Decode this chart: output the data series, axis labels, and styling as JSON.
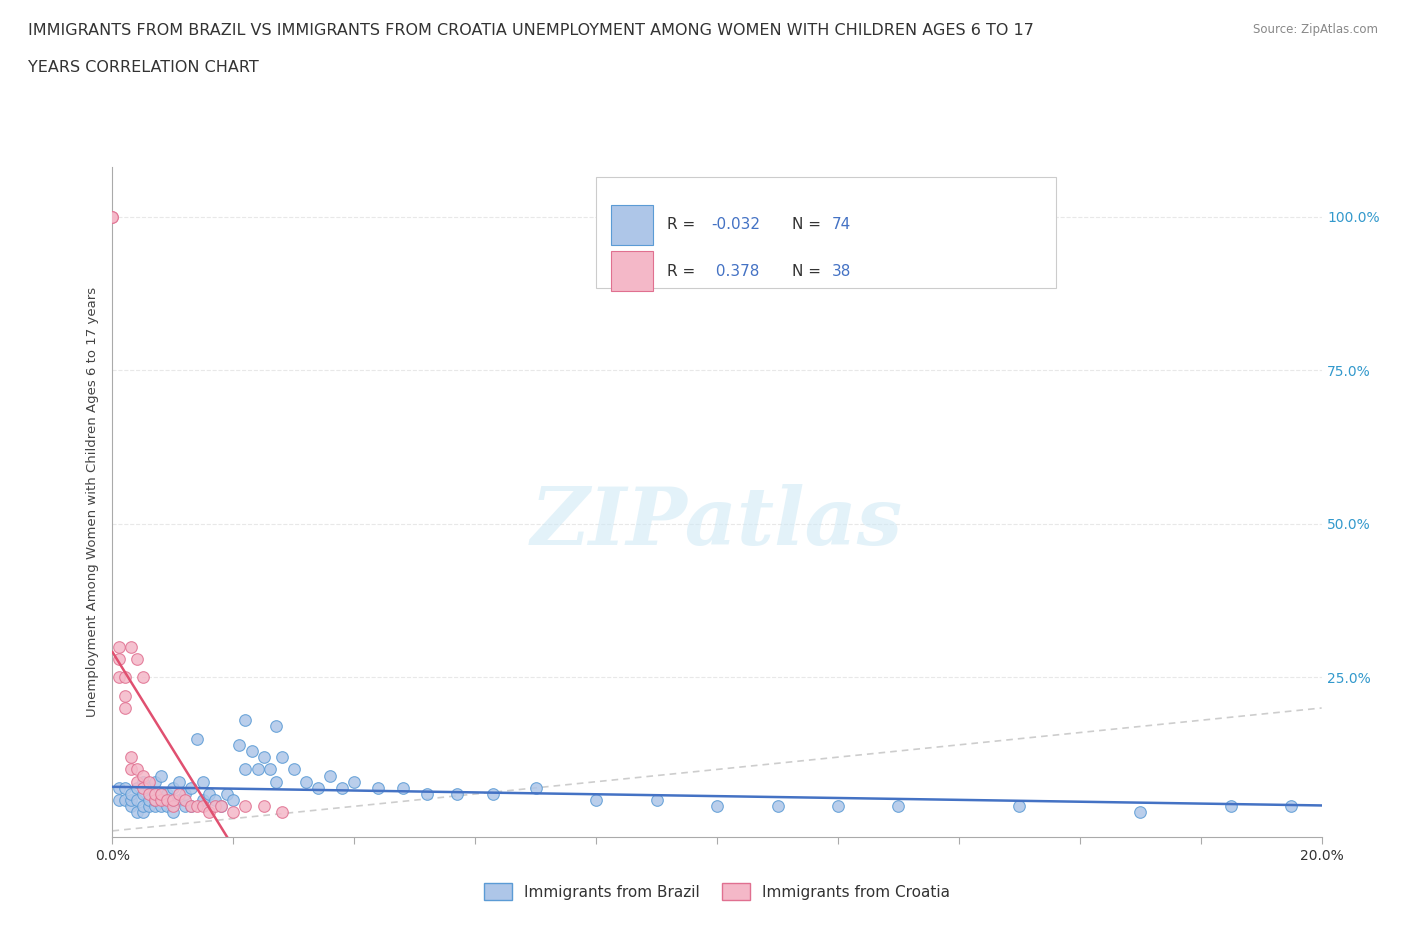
{
  "title_line1": "IMMIGRANTS FROM BRAZIL VS IMMIGRANTS FROM CROATIA UNEMPLOYMENT AMONG WOMEN WITH CHILDREN AGES 6 TO 17",
  "title_line2": "YEARS CORRELATION CHART",
  "source": "Source: ZipAtlas.com",
  "ylabel": "Unemployment Among Women with Children Ages 6 to 17 years",
  "xlim": [
    0.0,
    0.2
  ],
  "ylim": [
    -0.01,
    1.08
  ],
  "brazil_color": "#aec6e8",
  "croatia_color": "#f4b8c8",
  "brazil_edge": "#5b9bd5",
  "croatia_edge": "#e07090",
  "brazil_line_color": "#4472c4",
  "croatia_line_color": "#e05070",
  "diagonal_color": "#c8c8c8",
  "background_color": "#ffffff",
  "grid_color": "#e8e8e8",
  "title_fontsize": 11.5,
  "axis_label_fontsize": 9.5,
  "tick_fontsize": 10,
  "marker_size": 70,
  "brazil_x": [
    0.001,
    0.001,
    0.002,
    0.002,
    0.003,
    0.003,
    0.003,
    0.004,
    0.004,
    0.004,
    0.005,
    0.005,
    0.005,
    0.005,
    0.006,
    0.006,
    0.006,
    0.007,
    0.007,
    0.007,
    0.008,
    0.008,
    0.008,
    0.009,
    0.009,
    0.01,
    0.01,
    0.01,
    0.011,
    0.011,
    0.012,
    0.012,
    0.013,
    0.013,
    0.014,
    0.015,
    0.015,
    0.016,
    0.017,
    0.018,
    0.019,
    0.02,
    0.021,
    0.022,
    0.023,
    0.024,
    0.025,
    0.026,
    0.027,
    0.028,
    0.03,
    0.032,
    0.034,
    0.036,
    0.038,
    0.04,
    0.044,
    0.048,
    0.052,
    0.057,
    0.063,
    0.07,
    0.08,
    0.09,
    0.1,
    0.11,
    0.12,
    0.13,
    0.15,
    0.17,
    0.185,
    0.195,
    0.022,
    0.027
  ],
  "brazil_y": [
    0.05,
    0.07,
    0.05,
    0.07,
    0.04,
    0.05,
    0.06,
    0.03,
    0.05,
    0.07,
    0.03,
    0.04,
    0.06,
    0.08,
    0.04,
    0.05,
    0.07,
    0.04,
    0.05,
    0.08,
    0.04,
    0.06,
    0.09,
    0.04,
    0.06,
    0.03,
    0.05,
    0.07,
    0.05,
    0.08,
    0.04,
    0.06,
    0.04,
    0.07,
    0.15,
    0.05,
    0.08,
    0.06,
    0.05,
    0.04,
    0.06,
    0.05,
    0.14,
    0.1,
    0.13,
    0.1,
    0.12,
    0.1,
    0.08,
    0.12,
    0.1,
    0.08,
    0.07,
    0.09,
    0.07,
    0.08,
    0.07,
    0.07,
    0.06,
    0.06,
    0.06,
    0.07,
    0.05,
    0.05,
    0.04,
    0.04,
    0.04,
    0.04,
    0.04,
    0.03,
    0.04,
    0.04,
    0.18,
    0.17
  ],
  "croatia_x": [
    0.0,
    0.0,
    0.001,
    0.001,
    0.001,
    0.002,
    0.002,
    0.002,
    0.003,
    0.003,
    0.003,
    0.004,
    0.004,
    0.004,
    0.005,
    0.005,
    0.005,
    0.006,
    0.006,
    0.007,
    0.007,
    0.008,
    0.008,
    0.009,
    0.01,
    0.01,
    0.011,
    0.012,
    0.013,
    0.014,
    0.015,
    0.016,
    0.017,
    0.018,
    0.02,
    0.022,
    0.025,
    0.028
  ],
  "croatia_y": [
    1.0,
    1.0,
    0.28,
    0.3,
    0.25,
    0.2,
    0.22,
    0.25,
    0.1,
    0.12,
    0.3,
    0.08,
    0.1,
    0.28,
    0.07,
    0.09,
    0.25,
    0.06,
    0.08,
    0.05,
    0.06,
    0.05,
    0.06,
    0.05,
    0.04,
    0.05,
    0.06,
    0.05,
    0.04,
    0.04,
    0.04,
    0.03,
    0.04,
    0.04,
    0.03,
    0.04,
    0.04,
    0.03
  ]
}
